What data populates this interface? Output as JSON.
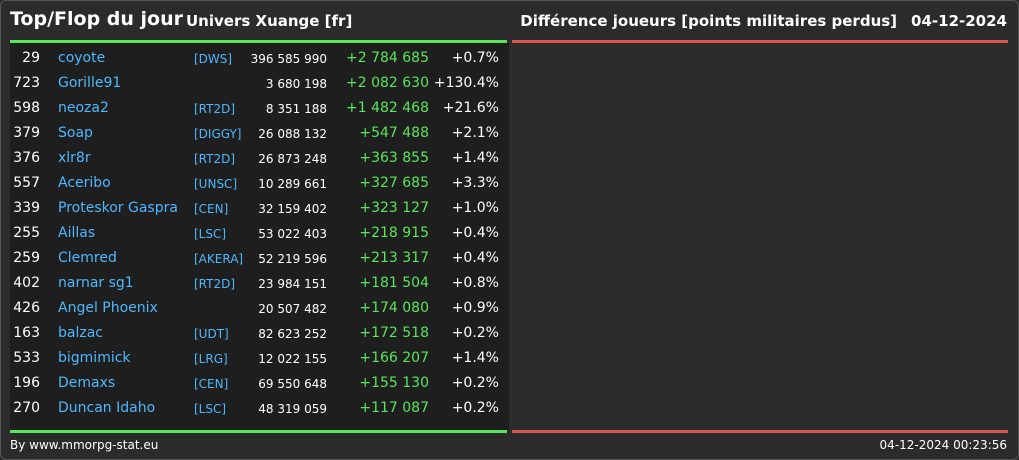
{
  "header": {
    "title": "Top/Flop du jour",
    "universe": "Univers Xuange [fr]",
    "metric": "Différence joueurs [points militaires perdus]",
    "date": "04-12-2024"
  },
  "colors": {
    "accent_up": "#58e65a",
    "accent_down": "#d9534f",
    "link": "#4db8ff"
  },
  "rows": [
    {
      "rank": "29",
      "name": "coyote",
      "ally": "[DWS]",
      "points": "396 585 990",
      "diff": "+2 784 685",
      "pct": "+0.7%"
    },
    {
      "rank": "723",
      "name": "Gorille91",
      "ally": "",
      "points": "3 680 198",
      "diff": "+2 082 630",
      "pct": "+130.4%"
    },
    {
      "rank": "598",
      "name": "neoza2",
      "ally": "[RT2D]",
      "points": "8 351 188",
      "diff": "+1 482 468",
      "pct": "+21.6%"
    },
    {
      "rank": "379",
      "name": "Soap",
      "ally": "[DIGGY]",
      "points": "26 088 132",
      "diff": "+547 488",
      "pct": "+2.1%"
    },
    {
      "rank": "376",
      "name": "xlr8r",
      "ally": "[RT2D]",
      "points": "26 873 248",
      "diff": "+363 855",
      "pct": "+1.4%"
    },
    {
      "rank": "557",
      "name": "Aceribo",
      "ally": "[UNSC]",
      "points": "10 289 661",
      "diff": "+327 685",
      "pct": "+3.3%"
    },
    {
      "rank": "339",
      "name": "Proteskor Gaspra",
      "ally": "[CEN]",
      "points": "32 159 402",
      "diff": "+323 127",
      "pct": "+1.0%"
    },
    {
      "rank": "255",
      "name": "Aillas",
      "ally": "[LSC]",
      "points": "53 022 403",
      "diff": "+218 915",
      "pct": "+0.4%"
    },
    {
      "rank": "259",
      "name": "Clemred",
      "ally": "[AKERA]",
      "points": "52 219 596",
      "diff": "+213 317",
      "pct": "+0.4%"
    },
    {
      "rank": "402",
      "name": "narnar sg1",
      "ally": "[RT2D]",
      "points": "23 984 151",
      "diff": "+181 504",
      "pct": "+0.8%"
    },
    {
      "rank": "426",
      "name": "Angel Phoenix",
      "ally": "",
      "points": "20 507 482",
      "diff": "+174 080",
      "pct": "+0.9%"
    },
    {
      "rank": "163",
      "name": "balzac",
      "ally": "[UDT]",
      "points": "82 623 252",
      "diff": "+172 518",
      "pct": "+0.2%"
    },
    {
      "rank": "533",
      "name": "bigmimick",
      "ally": "[LRG]",
      "points": "12 022 155",
      "diff": "+166 207",
      "pct": "+1.4%"
    },
    {
      "rank": "196",
      "name": "Demaxs",
      "ally": "[CEN]",
      "points": "69 550 648",
      "diff": "+155 130",
      "pct": "+0.2%"
    },
    {
      "rank": "270",
      "name": "Duncan Idaho",
      "ally": "[LSC]",
      "points": "48 319 059",
      "diff": "+117 087",
      "pct": "+0.2%"
    }
  ],
  "footer": {
    "credit": "By www.mmorpg-stat.eu",
    "timestamp": "04-12-2024 00:23:56"
  }
}
